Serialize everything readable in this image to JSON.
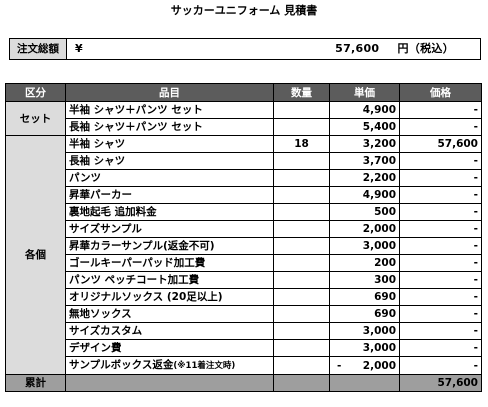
{
  "title": "サッカーユニフォーム 見積書",
  "total": {
    "label": "注文総額",
    "currency": "¥",
    "amount": "57,600",
    "unit": "円（税込）"
  },
  "headers": {
    "category": "区分",
    "item": "品目",
    "qty": "数量",
    "price": "単価",
    "amount": "価格"
  },
  "groups": [
    {
      "category": "セット",
      "rows": [
        {
          "item": "半袖 シャツ＋パンツ セット",
          "qty": "",
          "price": "4,900",
          "amount": "-"
        },
        {
          "item": "長袖 シャツ＋パンツ セット",
          "qty": "",
          "price": "5,400",
          "amount": "-"
        }
      ]
    },
    {
      "category": "各個",
      "rows": [
        {
          "item": "半袖 シャツ",
          "qty": "18",
          "price": "3,200",
          "amount": "57,600"
        },
        {
          "item": "長袖 シャツ",
          "qty": "",
          "price": "3,700",
          "amount": "-"
        },
        {
          "item": "パンツ",
          "qty": "",
          "price": "2,200",
          "amount": "-"
        },
        {
          "item": "昇華パーカー",
          "qty": "",
          "price": "4,900",
          "amount": "-"
        },
        {
          "item": "裏地起毛 追加料金",
          "qty": "",
          "price": "500",
          "amount": "-"
        },
        {
          "item": "サイズサンプル",
          "qty": "",
          "price": "2,000",
          "amount": "-"
        },
        {
          "item": "昇華カラーサンプル(返金不可)",
          "qty": "",
          "price": "3,000",
          "amount": "-"
        },
        {
          "item": "ゴールキーパーパッド加工費",
          "qty": "",
          "price": "200",
          "amount": "-"
        },
        {
          "item": "パンツ ペッチコート加工費",
          "qty": "",
          "price": "300",
          "amount": "-"
        },
        {
          "item": "オリジナルソックス (20足以上)",
          "qty": "",
          "price": "690",
          "amount": "-"
        },
        {
          "item": "無地ソックス",
          "qty": "",
          "price": "690",
          "amount": "-"
        },
        {
          "item": "サイズカスタム",
          "qty": "",
          "price": "3,000",
          "amount": "-"
        },
        {
          "item": "デザイン費",
          "qty": "",
          "price": "3,000",
          "amount": "-"
        },
        {
          "item": "サンプルボックス返金",
          "note": "(※11着注文時)",
          "qty": "",
          "minus": "-",
          "price": "2,000",
          "amount": "-"
        }
      ]
    }
  ],
  "summary": {
    "label": "累計",
    "amount": "57,600"
  }
}
